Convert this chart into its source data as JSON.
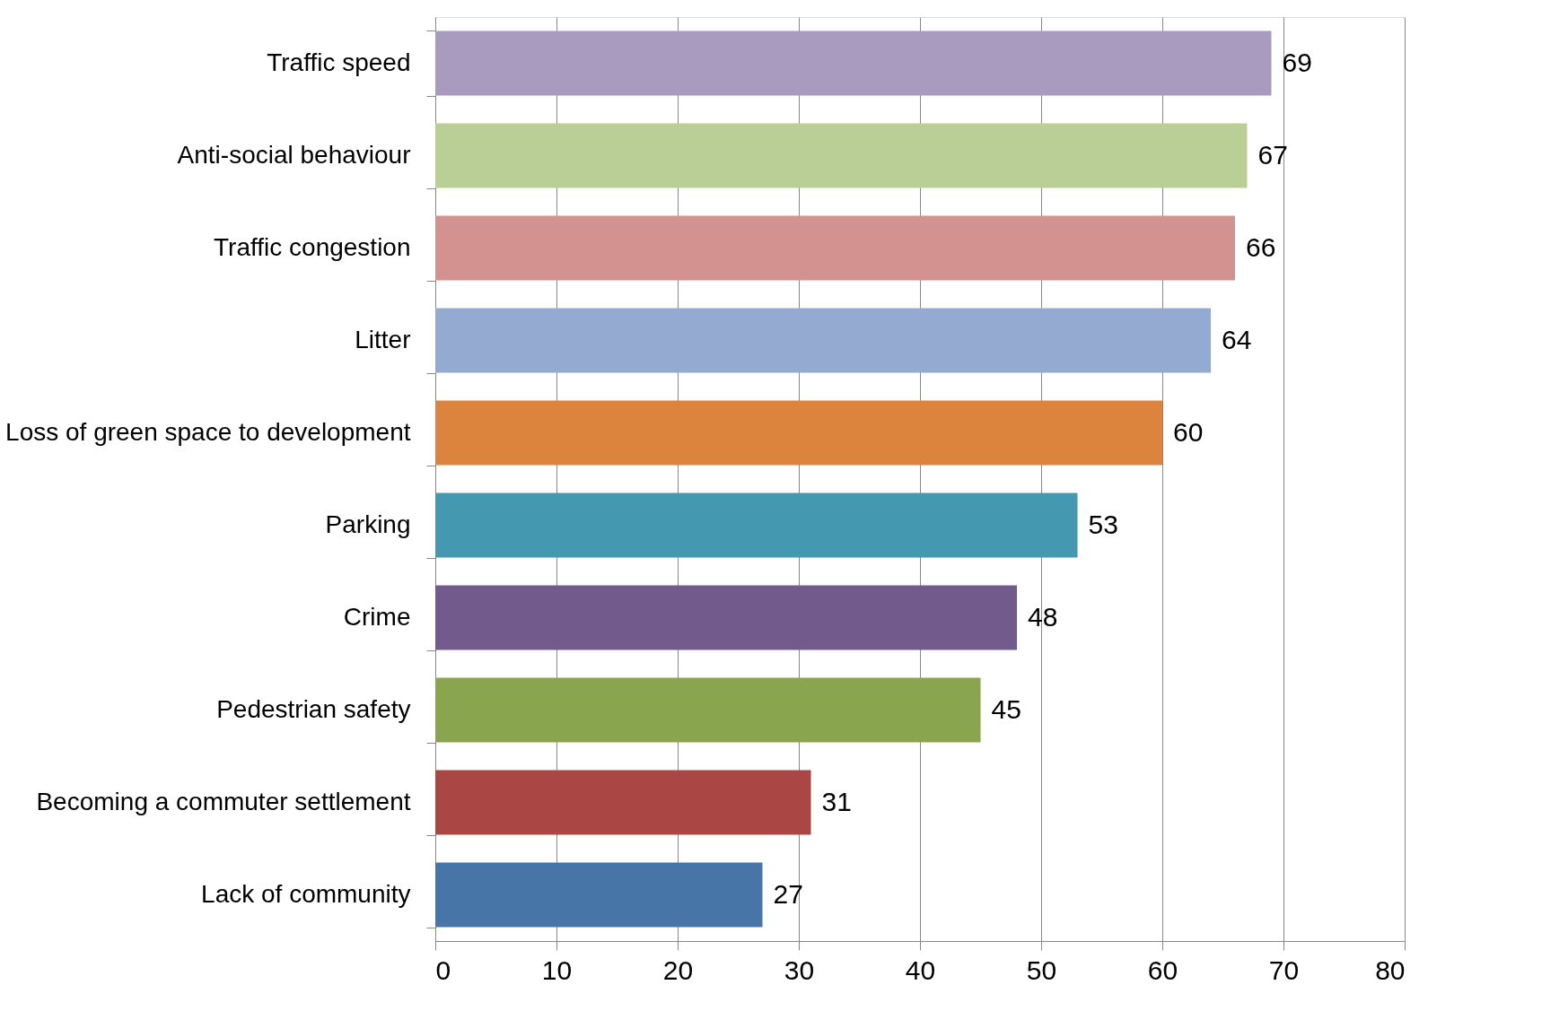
{
  "chart_data": {
    "type": "bar",
    "orientation": "horizontal",
    "categories": [
      "Traffic speed",
      "Anti-social behaviour",
      "Traffic congestion",
      "Litter",
      "Loss of green space to development",
      "Parking",
      "Crime",
      "Pedestrian safety",
      "Becoming a commuter settlement",
      "Lack of community"
    ],
    "values": [
      69,
      67,
      66,
      64,
      60,
      53,
      48,
      45,
      31,
      27
    ],
    "colors": [
      "#a99bbf",
      "#b9cf96",
      "#d39190",
      "#95aad1",
      "#dc843e",
      "#4499b0",
      "#735a8c",
      "#89a64e",
      "#aa4644",
      "#4775a8"
    ],
    "xlim": [
      0,
      80
    ],
    "xticks": [
      0,
      10,
      20,
      30,
      40,
      50,
      60,
      70,
      80
    ],
    "grid": "x",
    "data_labels": true
  }
}
